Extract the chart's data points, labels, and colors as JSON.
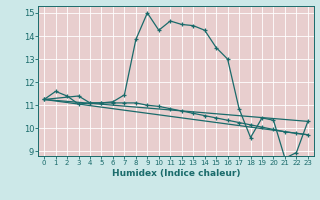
{
  "background_color": "#cce8e8",
  "grid_color": "#ffffff",
  "cell_color": "#e8cece",
  "line_color": "#1a6b6b",
  "xlabel": "Humidex (Indice chaleur)",
  "xlim": [
    -0.5,
    23.5
  ],
  "ylim": [
    8.8,
    15.3
  ],
  "yticks": [
    9,
    10,
    11,
    12,
    13,
    14,
    15
  ],
  "xticks": [
    0,
    1,
    2,
    3,
    4,
    5,
    6,
    7,
    8,
    9,
    10,
    11,
    12,
    13,
    14,
    15,
    16,
    17,
    18,
    19,
    20,
    21,
    22,
    23
  ],
  "line1_x": [
    0,
    1,
    2,
    3,
    4,
    5,
    6,
    7,
    8,
    9,
    10,
    11,
    12,
    13,
    14,
    15,
    16,
    17,
    18,
    19,
    20,
    21,
    22,
    23
  ],
  "line1_y": [
    11.25,
    11.6,
    11.4,
    11.05,
    11.1,
    11.1,
    11.15,
    11.45,
    13.85,
    15.0,
    14.25,
    14.65,
    14.5,
    14.45,
    14.25,
    13.5,
    13.0,
    10.85,
    9.6,
    10.45,
    10.35,
    8.7,
    8.95,
    10.3
  ],
  "line2_x": [
    0,
    3,
    4,
    5,
    6,
    7,
    8,
    9,
    10,
    11,
    12,
    13,
    14,
    15,
    16,
    17,
    18,
    19,
    20,
    21,
    22,
    23
  ],
  "line2_y": [
    11.25,
    11.4,
    11.1,
    11.1,
    11.1,
    11.1,
    11.1,
    11.0,
    10.95,
    10.85,
    10.75,
    10.65,
    10.55,
    10.45,
    10.35,
    10.25,
    10.15,
    10.05,
    9.95,
    9.85,
    9.78,
    9.72
  ],
  "line3_x": [
    0,
    23
  ],
  "line3_y": [
    11.25,
    10.3
  ],
  "line4_x": [
    0,
    23
  ],
  "line4_y": [
    11.25,
    9.72
  ]
}
